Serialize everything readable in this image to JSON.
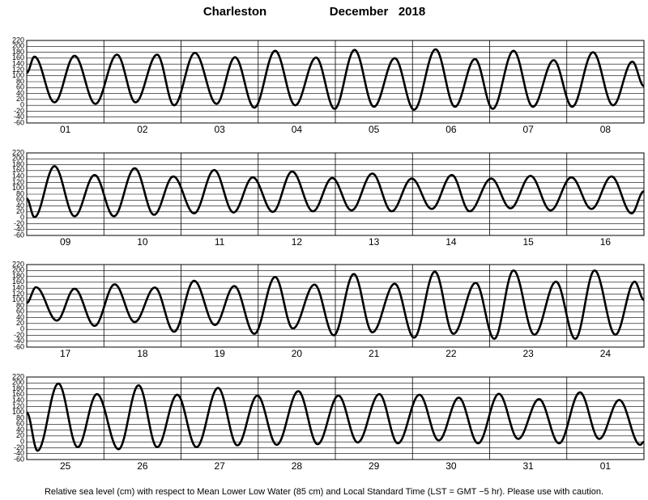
{
  "title_place": "Charleston",
  "title_date": "December   2018",
  "footnote": "Relative sea level (cm) with respect to Mean Lower Low Water (85 cm) and Local Standard Time (LST = GMT −5 hr). Please use with caution.",
  "chart_data": [
    {
      "type": "line",
      "color": "#000000",
      "grid": true,
      "xlim": [
        0,
        8
      ],
      "ylim": [
        -60,
        220
      ],
      "yticks": [
        -60,
        -40,
        -20,
        0,
        20,
        40,
        60,
        80,
        100,
        120,
        140,
        160,
        180,
        200,
        220
      ],
      "categories": [
        "01",
        "02",
        "03",
        "04",
        "05",
        "06",
        "07",
        "08"
      ],
      "x": [
        0,
        0.1,
        0.36,
        0.62,
        0.89,
        1.17,
        1.41,
        1.69,
        1.91,
        2.18,
        2.46,
        2.7,
        2.95,
        3.22,
        3.48,
        3.75,
        3.99,
        4.25,
        4.5,
        4.77,
        5.02,
        5.3,
        5.55,
        5.81,
        6.04,
        6.31,
        6.56,
        6.83,
        7.07,
        7.34,
        7.6,
        7.85,
        8
      ],
      "values": [
        110,
        165,
        10,
        168,
        5,
        172,
        10,
        172,
        0,
        178,
        5,
        163,
        -8,
        185,
        0,
        162,
        -12,
        188,
        -5,
        160,
        -15,
        190,
        -5,
        157,
        -12,
        185,
        -5,
        153,
        -5,
        180,
        0,
        148,
        65
      ]
    },
    {
      "type": "line",
      "color": "#000000",
      "grid": true,
      "xlim": [
        0,
        8
      ],
      "ylim": [
        -60,
        220
      ],
      "yticks": [
        -60,
        -40,
        -20,
        0,
        20,
        40,
        60,
        80,
        100,
        120,
        140,
        160,
        180,
        200,
        220
      ],
      "categories": [
        "09",
        "10",
        "11",
        "12",
        "13",
        "14",
        "15",
        "16"
      ],
      "x": [
        0,
        0.1,
        0.36,
        0.62,
        0.88,
        1.13,
        1.4,
        1.65,
        1.9,
        2.17,
        2.43,
        2.68,
        2.93,
        3.19,
        3.44,
        3.71,
        3.96,
        4.21,
        4.48,
        4.73,
        4.99,
        5.25,
        5.51,
        5.74,
        6.02,
        6.27,
        6.53,
        6.79,
        7.06,
        7.32,
        7.58,
        7.84,
        8
      ],
      "values": [
        65,
        2,
        175,
        5,
        145,
        5,
        168,
        10,
        140,
        15,
        162,
        18,
        137,
        20,
        157,
        22,
        135,
        25,
        150,
        22,
        133,
        30,
        145,
        22,
        133,
        32,
        142,
        25,
        137,
        30,
        140,
        15,
        90
      ]
    },
    {
      "type": "line",
      "color": "#000000",
      "grid": true,
      "xlim": [
        0,
        8
      ],
      "ylim": [
        -60,
        220
      ],
      "yticks": [
        -60,
        -40,
        -20,
        0,
        20,
        40,
        60,
        80,
        100,
        120,
        140,
        160,
        180,
        200,
        220
      ],
      "categories": [
        "17",
        "18",
        "19",
        "20",
        "21",
        "22",
        "23",
        "24"
      ],
      "x": [
        0,
        0.12,
        0.39,
        0.62,
        0.88,
        1.14,
        1.4,
        1.66,
        1.91,
        2.17,
        2.44,
        2.69,
        2.95,
        3.22,
        3.45,
        3.73,
        3.98,
        4.24,
        4.48,
        4.77,
        5.02,
        5.29,
        5.53,
        5.82,
        6.06,
        6.31,
        6.58,
        6.86,
        7.11,
        7.36,
        7.63,
        7.88,
        8
      ],
      "values": [
        90,
        143,
        30,
        138,
        12,
        153,
        25,
        142,
        -8,
        165,
        15,
        147,
        -15,
        178,
        3,
        152,
        -20,
        188,
        -10,
        155,
        -28,
        196,
        -15,
        158,
        -32,
        200,
        -18,
        162,
        -32,
        200,
        -18,
        162,
        100
      ]
    },
    {
      "type": "line",
      "color": "#000000",
      "grid": true,
      "xlim": [
        0,
        8
      ],
      "ylim": [
        -60,
        220
      ],
      "yticks": [
        -60,
        -40,
        -20,
        0,
        20,
        40,
        60,
        80,
        100,
        120,
        140,
        160,
        180,
        200,
        220
      ],
      "categories": [
        "25",
        "26",
        "27",
        "28",
        "29",
        "30",
        "31",
        "01"
      ],
      "x": [
        0,
        0.14,
        0.41,
        0.66,
        0.91,
        1.19,
        1.45,
        1.69,
        1.95,
        2.2,
        2.48,
        2.73,
        2.99,
        3.24,
        3.52,
        3.77,
        4.04,
        4.29,
        4.57,
        4.81,
        5.09,
        5.34,
        5.6,
        5.85,
        6.12,
        6.37,
        6.64,
        6.9,
        7.17,
        7.42,
        7.68,
        7.95,
        8
      ],
      "values": [
        100,
        -30,
        198,
        -18,
        162,
        -25,
        192,
        -18,
        160,
        -18,
        183,
        -12,
        157,
        -10,
        172,
        -8,
        157,
        -2,
        162,
        -5,
        160,
        5,
        150,
        -5,
        163,
        10,
        145,
        -5,
        168,
        10,
        142,
        -10,
        0
      ]
    }
  ]
}
